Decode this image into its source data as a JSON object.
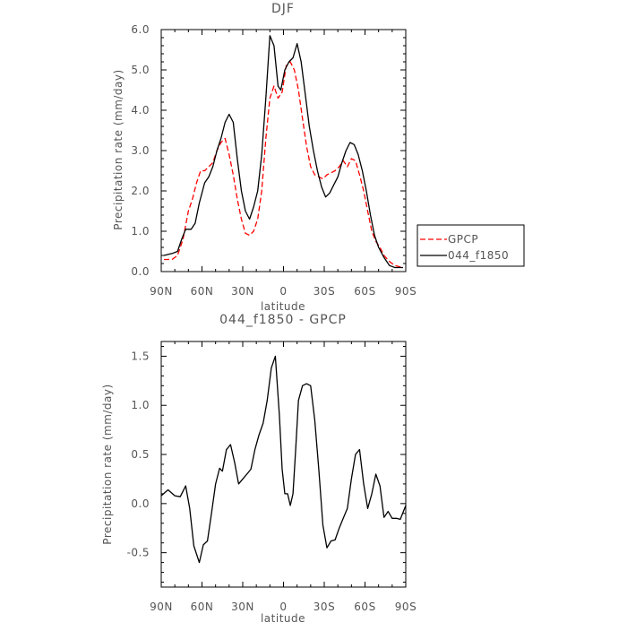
{
  "chart_data": [
    {
      "type": "line",
      "title": "DJF",
      "xlabel": "latitude",
      "ylabel": "Precipitation rate (mm/day)",
      "xlim": [
        90,
        -90
      ],
      "ylim": [
        0,
        6
      ],
      "x_ticks": [
        "90N",
        "60N",
        "30N",
        "0",
        "30S",
        "60S",
        "90S"
      ],
      "y_ticks": [
        "0.0",
        "1.0",
        "2.0",
        "3.0",
        "4.0",
        "5.0",
        "6.0"
      ],
      "legend_position": "right",
      "series": [
        {
          "name": "GPCP",
          "color": "#ff0000",
          "style": "dashed",
          "x": [
            88,
            82,
            78,
            74,
            70,
            67,
            64,
            61,
            58,
            55,
            52,
            49,
            46,
            43,
            40,
            37,
            34,
            31,
            28,
            25,
            22,
            19,
            16,
            13,
            10,
            7,
            4,
            1,
            -2,
            -5,
            -8,
            -11,
            -14,
            -17,
            -20,
            -23,
            -26,
            -29,
            -32,
            -35,
            -38,
            -41,
            -44,
            -47,
            -50,
            -53,
            -56,
            -59,
            -62,
            -65,
            -68,
            -71,
            -74,
            -78,
            -82,
            -88
          ],
          "values": [
            0.3,
            0.3,
            0.4,
            0.8,
            1.5,
            1.8,
            2.2,
            2.5,
            2.5,
            2.6,
            2.7,
            3.0,
            3.2,
            3.3,
            2.9,
            2.4,
            1.8,
            1.3,
            0.95,
            0.9,
            1.0,
            1.3,
            2.0,
            3.3,
            4.3,
            4.6,
            4.3,
            4.45,
            5.1,
            5.2,
            5.0,
            4.5,
            3.8,
            3.1,
            2.6,
            2.4,
            2.35,
            2.3,
            2.4,
            2.45,
            2.5,
            2.6,
            2.75,
            2.6,
            2.8,
            2.75,
            2.4,
            2.0,
            1.5,
            1.0,
            0.75,
            0.6,
            0.4,
            0.25,
            0.15,
            0.1
          ]
        },
        {
          "name": "044_f1850",
          "color": "#000000",
          "style": "solid",
          "x": [
            88,
            82,
            78,
            75,
            72,
            68,
            65,
            62,
            58,
            55,
            52,
            49,
            46,
            43,
            40,
            37,
            34,
            31,
            28,
            25,
            22,
            19,
            16,
            13,
            10,
            7,
            4,
            2,
            -1,
            -4,
            -7,
            -10,
            -13,
            -16,
            -19,
            -22,
            -25,
            -28,
            -31,
            -34,
            -37,
            -40,
            -43,
            -46,
            -49,
            -52,
            -55,
            -58,
            -61,
            -64,
            -67,
            -70,
            -74,
            -78,
            -82,
            -88
          ],
          "values": [
            0.4,
            0.45,
            0.5,
            0.8,
            1.05,
            1.05,
            1.2,
            1.7,
            2.2,
            2.35,
            2.6,
            3.0,
            3.3,
            3.7,
            3.9,
            3.7,
            2.8,
            2.0,
            1.5,
            1.3,
            1.6,
            2.0,
            2.9,
            4.3,
            5.85,
            5.6,
            4.6,
            4.5,
            5.0,
            5.2,
            5.3,
            5.65,
            5.2,
            4.4,
            3.6,
            3.0,
            2.5,
            2.1,
            1.85,
            1.95,
            2.15,
            2.35,
            2.7,
            3.0,
            3.2,
            3.15,
            2.9,
            2.5,
            2.0,
            1.4,
            0.9,
            0.6,
            0.35,
            0.15,
            0.1,
            0.1
          ]
        }
      ]
    },
    {
      "type": "line",
      "title": "044_f1850 - GPCP",
      "xlabel": "latitude",
      "ylabel": "Precipitation rate (mm/day)",
      "xlim": [
        90,
        -90
      ],
      "ylim": [
        -0.85,
        1.65
      ],
      "x_ticks": [
        "90N",
        "60N",
        "30N",
        "0",
        "30S",
        "60S",
        "90S"
      ],
      "y_ticks": [
        "-0.5",
        "0.0",
        "0.5",
        "1.0",
        "1.5"
      ],
      "series": [
        {
          "color": "#000000",
          "style": "solid",
          "x": [
            90,
            85,
            80,
            76,
            72,
            69,
            66,
            62,
            59,
            56,
            53,
            50,
            47,
            45,
            42,
            39,
            36,
            33,
            30,
            27,
            24,
            21,
            18,
            15,
            12,
            9,
            6,
            3,
            1,
            -1,
            -3,
            -5,
            -7,
            -9,
            -11,
            -14,
            -17,
            -20,
            -23,
            -26,
            -29,
            -32,
            -35,
            -38,
            -41,
            -44,
            -47,
            -50,
            -53,
            -56,
            -59,
            -62,
            -65,
            -68,
            -71,
            -74,
            -77,
            -80,
            -83,
            -86,
            -90
          ],
          "values": [
            0.08,
            0.14,
            0.08,
            0.07,
            0.18,
            -0.05,
            -0.43,
            -0.6,
            -0.42,
            -0.38,
            -0.1,
            0.2,
            0.36,
            0.33,
            0.55,
            0.6,
            0.42,
            0.2,
            0.25,
            0.3,
            0.35,
            0.55,
            0.7,
            0.82,
            1.05,
            1.38,
            1.5,
            0.9,
            0.35,
            0.1,
            0.1,
            -0.02,
            0.1,
            0.55,
            1.05,
            1.2,
            1.22,
            1.2,
            0.85,
            0.35,
            -0.22,
            -0.45,
            -0.38,
            -0.37,
            -0.25,
            -0.15,
            -0.05,
            0.25,
            0.5,
            0.55,
            0.2,
            -0.05,
            0.1,
            0.3,
            0.18,
            -0.14,
            -0.08,
            -0.15,
            -0.15,
            -0.16,
            -0.02
          ]
        }
      ]
    }
  ]
}
